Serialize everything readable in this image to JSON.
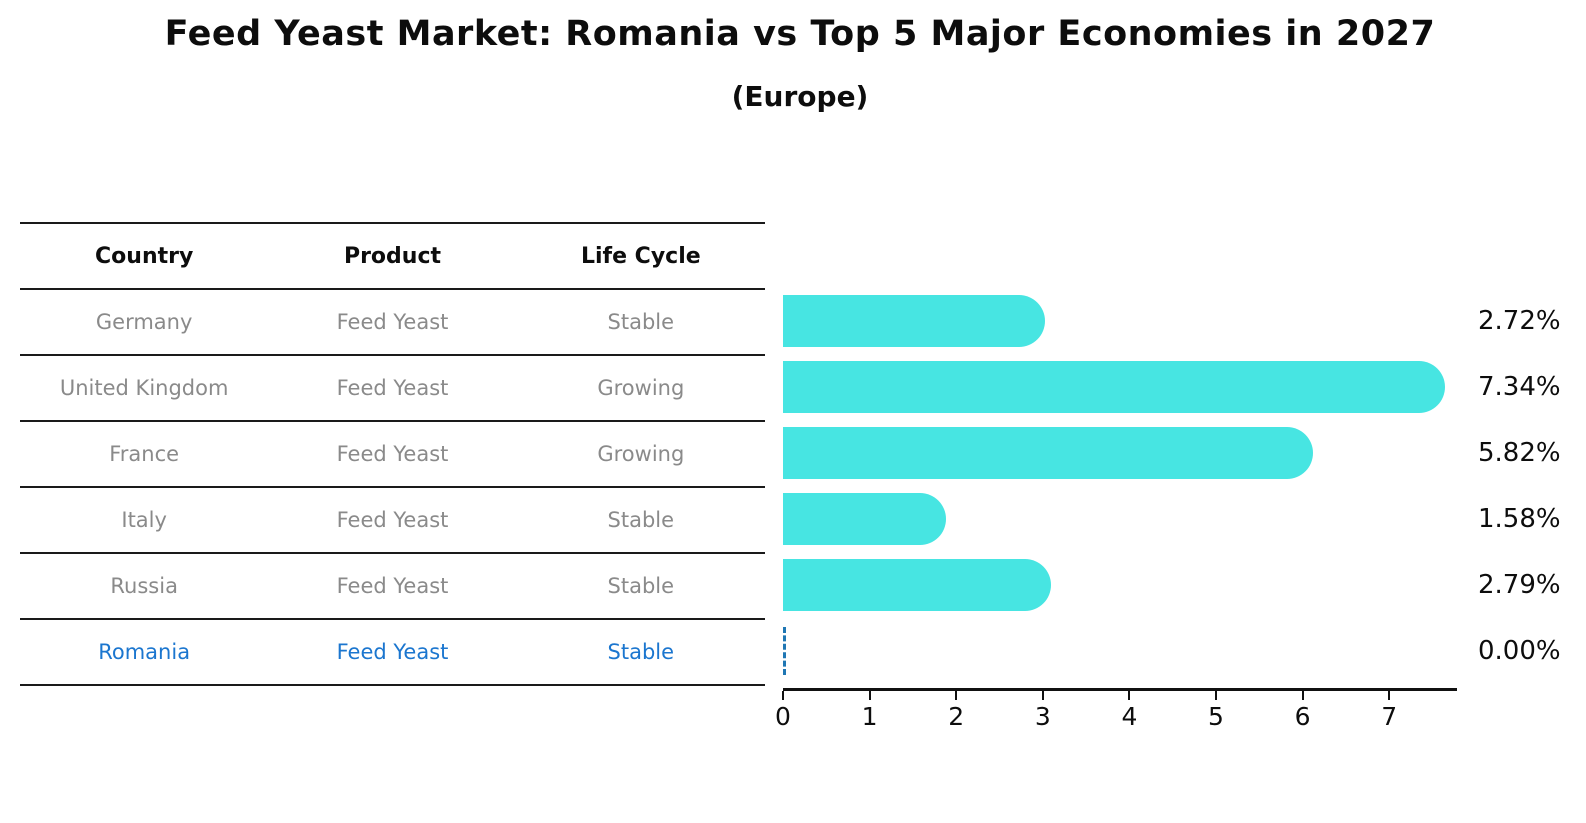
{
  "title": "Feed Yeast Market: Romania vs Top 5 Major Economies in 2027",
  "subtitle": "(Europe)",
  "colors": {
    "bar": "#47e5e2",
    "highlight_text": "#1b76cf",
    "zero_marker": "#1f77b4",
    "row_text": "#8a8a8a",
    "heading_text": "#0d0d0d",
    "table_line": "#1a1a1a"
  },
  "table": {
    "headers": [
      "Country",
      "Product",
      "Life Cycle"
    ]
  },
  "rows": [
    {
      "country": "Germany",
      "product": "Feed Yeast",
      "life_cycle": "Stable",
      "value": 2.72,
      "value_label": "2.72%",
      "highlighted": false
    },
    {
      "country": "United Kingdom",
      "product": "Feed Yeast",
      "life_cycle": "Growing",
      "value": 7.34,
      "value_label": "7.34%",
      "highlighted": false
    },
    {
      "country": "France",
      "product": "Feed Yeast",
      "life_cycle": "Growing",
      "value": 5.82,
      "value_label": "5.82%",
      "highlighted": false
    },
    {
      "country": "Italy",
      "product": "Feed Yeast",
      "life_cycle": "Stable",
      "value": 1.58,
      "value_label": "1.58%",
      "highlighted": false
    },
    {
      "country": "Russia",
      "product": "Feed Yeast",
      "life_cycle": "Stable",
      "value": 2.79,
      "value_label": "2.79%",
      "highlighted": false
    },
    {
      "country": "Romania",
      "product": "Feed Yeast",
      "life_cycle": "Stable",
      "value": 0.0,
      "value_label": "0.00%",
      "highlighted": true
    }
  ],
  "chart_data": {
    "type": "bar",
    "orientation": "horizontal",
    "title": "Feed Yeast Market: Romania vs Top 5 Major Economies in 2027",
    "subtitle": "(Europe)",
    "categories": [
      "Germany",
      "United Kingdom",
      "France",
      "Italy",
      "Russia",
      "Romania"
    ],
    "values": [
      2.72,
      7.34,
      5.82,
      1.58,
      2.79,
      0.0
    ],
    "value_labels": [
      "2.72%",
      "7.34%",
      "5.82%",
      "1.58%",
      "2.79%",
      "0.00%"
    ],
    "xlabel": "",
    "ylabel": "",
    "xlim": [
      0,
      7.75
    ],
    "xticks": [
      0,
      1,
      2,
      3,
      4,
      5,
      6,
      7
    ],
    "grid": false,
    "legend": false,
    "bar_color": "#47e5e2",
    "zero_marker_style": "dashed-line"
  }
}
